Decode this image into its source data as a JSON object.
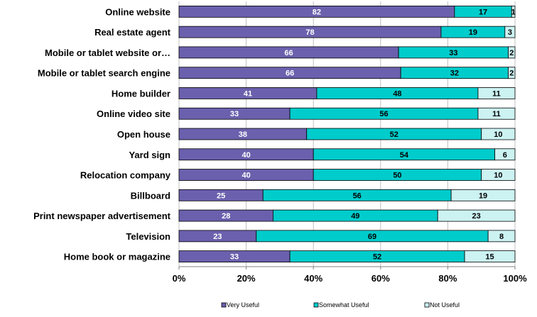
{
  "chart_data": {
    "type": "bar",
    "orientation": "horizontal",
    "stacked": "percent",
    "categories": [
      "Online website",
      "Real estate agent",
      "Mobile or tablet website or…",
      "Mobile or tablet search engine",
      "Home builder",
      "Online video site",
      "Open house",
      "Yard sign",
      "Relocation company",
      "Billboard",
      "Print newspaper advertisement",
      "Television",
      "Home book or magazine"
    ],
    "series": [
      {
        "name": "Very Useful",
        "color": "#6a60ad",
        "label_color": "#ffffff",
        "values": [
          82,
          78,
          66,
          66,
          41,
          33,
          38,
          40,
          40,
          25,
          28,
          23,
          33
        ]
      },
      {
        "name": "Somewhat Useful",
        "color": "#00cccc",
        "label_color": "#000000",
        "values": [
          17,
          19,
          33,
          32,
          48,
          56,
          52,
          54,
          50,
          56,
          49,
          69,
          52
        ]
      },
      {
        "name": "Not Useful",
        "color": "#ccf2f2",
        "label_color": "#000000",
        "values": [
          1,
          3,
          2,
          2,
          11,
          11,
          10,
          6,
          10,
          19,
          23,
          8,
          15
        ]
      }
    ],
    "x_ticks": [
      "0%",
      "20%",
      "40%",
      "60%",
      "80%",
      "100%"
    ],
    "xlim": [
      0,
      100
    ],
    "legend": "bottom",
    "grid": true
  }
}
